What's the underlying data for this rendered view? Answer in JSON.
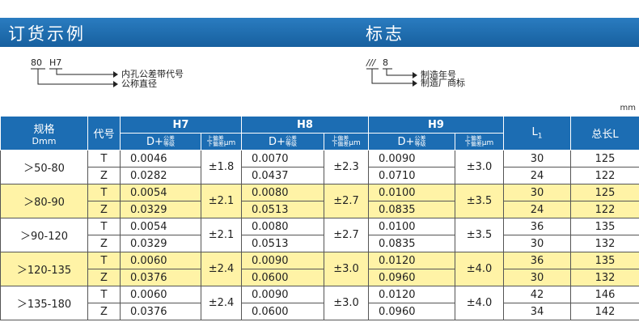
{
  "header": {
    "left_title": "订货示例",
    "right_title": "标志"
  },
  "order_example": {
    "code": [
      "80",
      "H7"
    ],
    "labels": [
      "内孔公差带代号",
      "公称直径"
    ]
  },
  "marking": {
    "code": [
      "///",
      "8"
    ],
    "labels": [
      "制造年号",
      "制造厂商标"
    ]
  },
  "unit": "mm",
  "table": {
    "columns": {
      "spec": "规格",
      "spec_unit": "Dmm",
      "code": "代号",
      "grades": [
        "H7",
        "H8",
        "H9"
      ],
      "d_prefix": "D+",
      "d_sub": [
        "公差",
        "等级"
      ],
      "tol_sub": [
        "上偏差",
        "下偏差"
      ],
      "tol_unit": "μm",
      "l1": [
        "L",
        "1"
      ],
      "total": "总长L"
    },
    "groups": [
      {
        "spec": "＞50-80",
        "tol": [
          "±1.8",
          "±2.3",
          "±3.0"
        ],
        "rows": [
          {
            "code": "T",
            "d": [
              "0.0046",
              "0.0070",
              "0.0090"
            ],
            "l1": "30",
            "total": "125"
          },
          {
            "code": "Z",
            "d": [
              "0.0282",
              "0.0437",
              "0.0710"
            ],
            "l1": "24",
            "total": "122"
          }
        ]
      },
      {
        "spec": "＞80-90",
        "tol": [
          "±2.1",
          "±2.7",
          "±3.5"
        ],
        "rows": [
          {
            "code": "T",
            "d": [
              "0.0054",
              "0.0080",
              "0.0100"
            ],
            "l1": "30",
            "total": "125"
          },
          {
            "code": "Z",
            "d": [
              "0.0329",
              "0.0513",
              "0.0835"
            ],
            "l1": "24",
            "total": "122"
          }
        ]
      },
      {
        "spec": "＞90-120",
        "tol": [
          "±2.1",
          "±2.7",
          "±3.5"
        ],
        "rows": [
          {
            "code": "T",
            "d": [
              "0.0054",
              "0.0080",
              "0.0100"
            ],
            "l1": "36",
            "total": "135"
          },
          {
            "code": "Z",
            "d": [
              "0.0329",
              "0.0513",
              "0.0835"
            ],
            "l1": "30",
            "total": "132"
          }
        ]
      },
      {
        "spec": "＞120-135",
        "tol": [
          "±2.4",
          "±3.0",
          "±4.0"
        ],
        "rows": [
          {
            "code": "T",
            "d": [
              "0.0060",
              "0.0090",
              "0.0120"
            ],
            "l1": "36",
            "total": "135"
          },
          {
            "code": "Z",
            "d": [
              "0.0376",
              "0.0600",
              "0.0960"
            ],
            "l1": "30",
            "total": "132"
          }
        ]
      },
      {
        "spec": "＞135-180",
        "tol": [
          "±2.4",
          "±3.0",
          "±4.0"
        ],
        "rows": [
          {
            "code": "T",
            "d": [
              "0.0060",
              "0.0090",
              "0.0120"
            ],
            "l1": "42",
            "total": "146"
          },
          {
            "code": "Z",
            "d": [
              "0.0376",
              "0.0600",
              "0.0960"
            ],
            "l1": "34",
            "total": "142"
          }
        ]
      }
    ]
  }
}
